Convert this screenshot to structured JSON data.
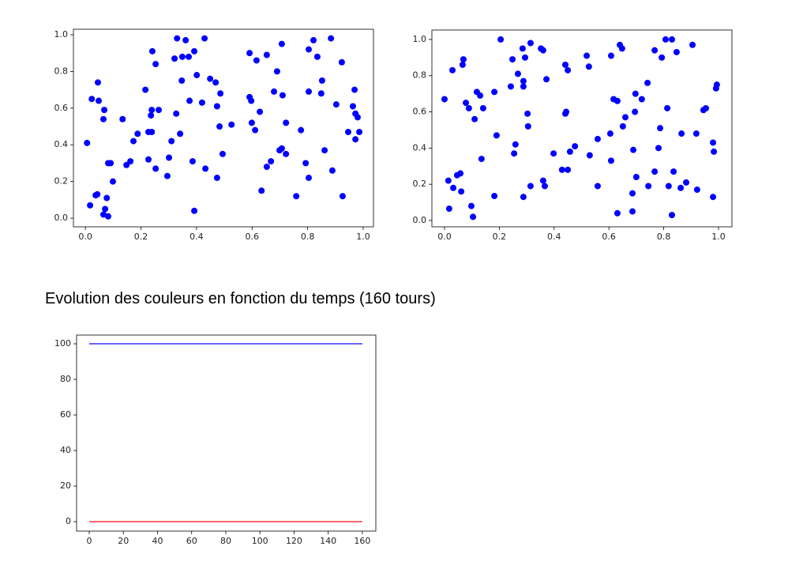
{
  "chart_data": [
    {
      "type": "scatter",
      "color": "#0000ff",
      "xlim": [
        -0.043,
        1.037
      ],
      "ylim": [
        -0.047,
        1.03
      ],
      "xticks": [
        {
          "value": 0,
          "label": "0.0"
        },
        {
          "value": 0.2,
          "label": "0.2"
        },
        {
          "value": 0.4,
          "label": "0.4"
        },
        {
          "value": 0.6,
          "label": "0.6"
        },
        {
          "value": 0.8,
          "label": "0.8"
        },
        {
          "value": 1,
          "label": "1.0"
        }
      ],
      "yticks": [
        {
          "value": 0,
          "label": "0.0"
        },
        {
          "value": 0.2,
          "label": "0.2"
        },
        {
          "value": 0.4,
          "label": "0.4"
        },
        {
          "value": 0.6,
          "label": "0.6"
        },
        {
          "value": 0.8,
          "label": "0.8"
        },
        {
          "value": 1,
          "label": "1.0"
        }
      ],
      "x": [
        0.006,
        0.017,
        0.023,
        0.037,
        0.043,
        0.045,
        0.048,
        0.065,
        0.068,
        0.065,
        0.071,
        0.077,
        0.082,
        0.082,
        0.091,
        0.099,
        0.134,
        0.148,
        0.162,
        0.173,
        0.188,
        0.216,
        0.227,
        0.227,
        0.236,
        0.239,
        0.239,
        0.241,
        0.253,
        0.253,
        0.264,
        0.295,
        0.301,
        0.31,
        0.321,
        0.33,
        0.327,
        0.341,
        0.347,
        0.349,
        0.361,
        0.372,
        0.375,
        0.386,
        0.392,
        0.392,
        0.401,
        0.42,
        0.429,
        0.432,
        0.449,
        0.469,
        0.474,
        0.474,
        0.483,
        0.486,
        0.494,
        0.526,
        0.591,
        0.591,
        0.597,
        0.599,
        0.611,
        0.616,
        0.628,
        0.634,
        0.653,
        0.653,
        0.668,
        0.679,
        0.69,
        0.699,
        0.707,
        0.707,
        0.71,
        0.722,
        0.722,
        0.759,
        0.776,
        0.793,
        0.804,
        0.804,
        0.804,
        0.821,
        0.835,
        0.849,
        0.852,
        0.861,
        0.884,
        0.889,
        0.903,
        0.923,
        0.926,
        0.946,
        0.963,
        0.969,
        0.972,
        0.972,
        0.98,
        0.986
      ],
      "values": [
        0.41,
        0.07,
        0.65,
        0.125,
        0.13,
        0.74,
        0.64,
        0.54,
        0.59,
        0.02,
        0.05,
        0.11,
        0.01,
        0.3,
        0.3,
        0.2,
        0.54,
        0.29,
        0.31,
        0.42,
        0.46,
        0.7,
        0.32,
        0.47,
        0.56,
        0.47,
        0.59,
        0.91,
        0.84,
        0.27,
        0.59,
        0.23,
        0.33,
        0.42,
        0.87,
        0.98,
        0.57,
        0.46,
        0.75,
        0.88,
        0.97,
        0.88,
        0.64,
        0.31,
        0.91,
        0.04,
        0.78,
        0.63,
        0.98,
        0.27,
        0.76,
        0.74,
        0.61,
        0.22,
        0.5,
        0.68,
        0.35,
        0.51,
        0.9,
        0.66,
        0.64,
        0.52,
        0.48,
        0.86,
        0.58,
        0.15,
        0.89,
        0.28,
        0.31,
        0.69,
        0.8,
        0.37,
        0.95,
        0.38,
        0.67,
        0.52,
        0.35,
        0.12,
        0.48,
        0.3,
        0.92,
        0.69,
        0.22,
        0.97,
        0.88,
        0.68,
        0.75,
        0.37,
        0.98,
        0.26,
        0.62,
        0.85,
        0.12,
        0.47,
        0.61,
        0.7,
        0.43,
        0.57,
        0.55,
        0.47
      ]
    },
    {
      "type": "scatter",
      "color": "#0000ff",
      "xlim": [
        -0.046,
        1.049
      ],
      "ylim": [
        -0.035,
        1.052
      ],
      "xticks": [
        {
          "value": 0,
          "label": "0.0"
        },
        {
          "value": 0.2,
          "label": "0.2"
        },
        {
          "value": 0.4,
          "label": "0.4"
        },
        {
          "value": 0.6,
          "label": "0.6"
        },
        {
          "value": 0.8,
          "label": "0.8"
        },
        {
          "value": 1,
          "label": "1.0"
        }
      ],
      "yticks": [
        {
          "value": 0,
          "label": "0.0"
        },
        {
          "value": 0.2,
          "label": "0.2"
        },
        {
          "value": 0.4,
          "label": "0.4"
        },
        {
          "value": 0.6,
          "label": "0.6"
        },
        {
          "value": 0.8,
          "label": "0.8"
        },
        {
          "value": 1,
          "label": "1.0"
        }
      ],
      "x": [
        0,
        0.014,
        0.017,
        0.029,
        0.032,
        0.046,
        0.058,
        0.061,
        0.066,
        0.069,
        0.078,
        0.089,
        0.098,
        0.104,
        0.11,
        0.118,
        0.13,
        0.135,
        0.141,
        0.182,
        0.182,
        0.19,
        0.205,
        0.242,
        0.248,
        0.254,
        0.259,
        0.268,
        0.285,
        0.288,
        0.288,
        0.288,
        0.294,
        0.303,
        0.305,
        0.314,
        0.314,
        0.352,
        0.36,
        0.36,
        0.366,
        0.372,
        0.398,
        0.429,
        0.441,
        0.441,
        0.444,
        0.45,
        0.45,
        0.458,
        0.476,
        0.519,
        0.527,
        0.53,
        0.559,
        0.559,
        0.605,
        0.608,
        0.608,
        0.617,
        0.631,
        0.631,
        0.64,
        0.648,
        0.651,
        0.66,
        0.686,
        0.686,
        0.689,
        0.695,
        0.697,
        0.7,
        0.72,
        0.741,
        0.744,
        0.767,
        0.767,
        0.781,
        0.787,
        0.793,
        0.807,
        0.813,
        0.818,
        0.83,
        0.83,
        0.836,
        0.847,
        0.862,
        0.865,
        0.882,
        0.905,
        0.922,
        0.919,
        0.945,
        0.954,
        0.98,
        0.98,
        0.983,
        0.991,
        0.994
      ],
      "values": [
        0.67,
        0.22,
        0.065,
        0.83,
        0.18,
        0.25,
        0.26,
        0.16,
        0.86,
        0.89,
        0.65,
        0.62,
        0.08,
        0.02,
        0.56,
        0.71,
        0.69,
        0.34,
        0.62,
        0.135,
        0.71,
        0.47,
        1.0,
        0.74,
        0.89,
        0.37,
        0.42,
        0.81,
        0.95,
        0.13,
        0.77,
        0.74,
        0.9,
        0.59,
        0.52,
        0.98,
        0.19,
        0.95,
        0.94,
        0.22,
        0.19,
        0.78,
        0.37,
        0.28,
        0.86,
        0.59,
        0.6,
        0.83,
        0.28,
        0.38,
        0.41,
        0.91,
        0.85,
        0.36,
        0.45,
        0.19,
        0.48,
        0.91,
        0.33,
        0.67,
        0.04,
        0.66,
        0.97,
        0.95,
        0.52,
        0.57,
        0.05,
        0.15,
        0.39,
        0.6,
        0.7,
        0.24,
        0.67,
        0.76,
        0.19,
        0.94,
        0.27,
        0.4,
        0.51,
        0.9,
        1.0,
        0.62,
        0.19,
        1.0,
        0.03,
        0.27,
        0.93,
        0.18,
        0.48,
        0.21,
        0.97,
        0.17,
        0.48,
        0.61,
        0.62,
        0.43,
        0.13,
        0.38,
        0.73,
        0.75
      ]
    },
    {
      "type": "line",
      "title": "Evolution des couleurs en fonction du temps (160 tours)",
      "xlim": [
        -7.4,
        167.9
      ],
      "ylim": [
        -5.3,
        104.9
      ],
      "xticks": [
        0,
        20,
        40,
        60,
        80,
        100,
        120,
        140,
        160
      ],
      "yticks": [
        0,
        20,
        40,
        60,
        80,
        100
      ],
      "x": [
        0,
        160
      ],
      "series": [
        {
          "color": "#0000ff",
          "values": [
            100,
            100
          ]
        },
        {
          "color": "#ff0000",
          "values": [
            0,
            0
          ]
        }
      ]
    }
  ]
}
